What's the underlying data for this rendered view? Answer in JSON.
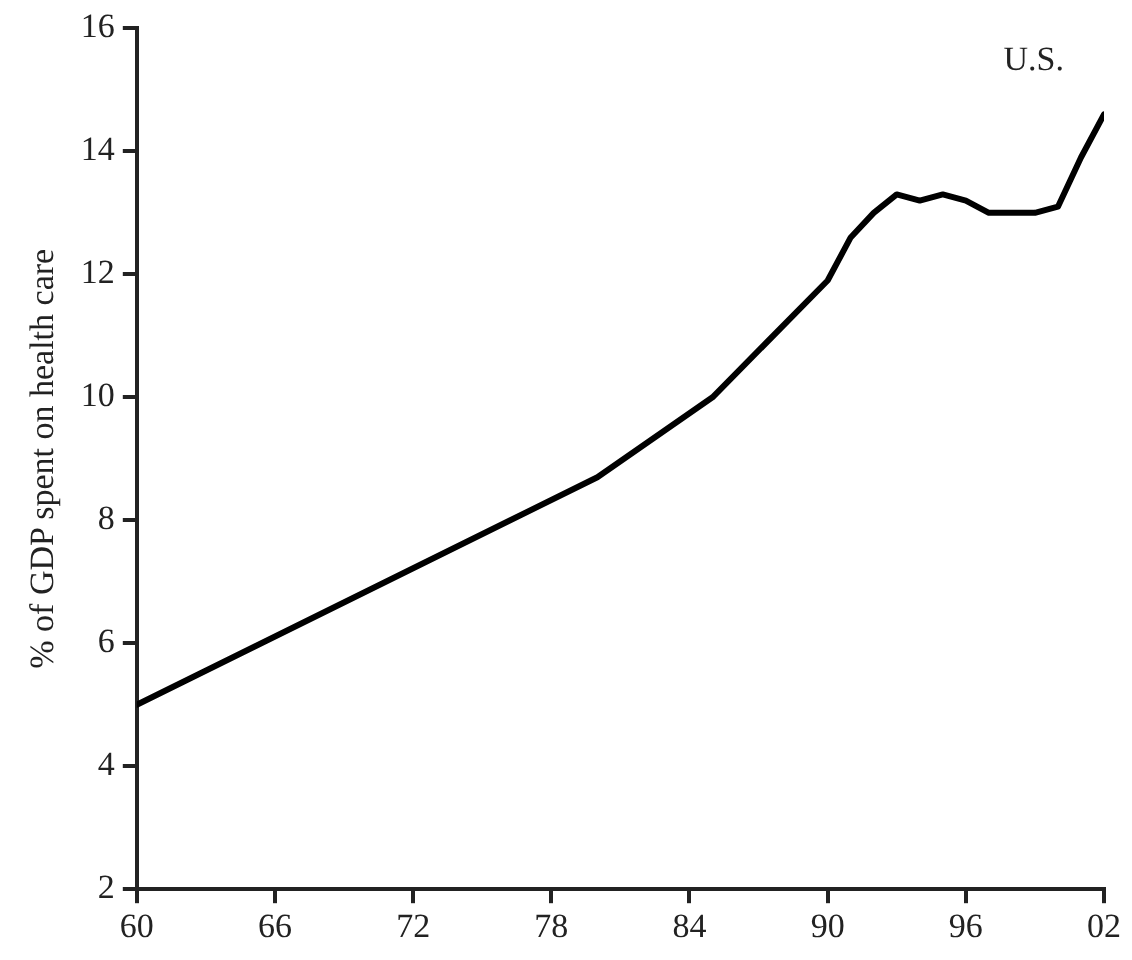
{
  "chart_data": {
    "type": "line",
    "ylabel": "% of GDP spent on health care",
    "annotations": [
      "U.S."
    ],
    "x": [
      1960,
      1980,
      1985,
      1990,
      1991,
      1992,
      1993,
      1994,
      1995,
      1996,
      1997,
      1998,
      1999,
      2000,
      2001,
      2002
    ],
    "series": [
      {
        "color": "#000000",
        "values": [
          5.0,
          8.7,
          10.0,
          11.9,
          12.6,
          13.0,
          13.3,
          13.2,
          13.3,
          13.2,
          13.0,
          13.0,
          13.0,
          13.1,
          13.9,
          14.6
        ]
      }
    ],
    "xlim": [
      1960,
      2002
    ],
    "xticks": [
      {
        "value": 1960,
        "label": "60"
      },
      {
        "value": 1966,
        "label": "66"
      },
      {
        "value": 1972,
        "label": "72"
      },
      {
        "value": 1978,
        "label": "78"
      },
      {
        "value": 1984,
        "label": "84"
      },
      {
        "value": 1990,
        "label": "90"
      },
      {
        "value": 1996,
        "label": "96"
      },
      {
        "value": 2002,
        "label": "02"
      }
    ],
    "ylim": [
      2,
      16
    ],
    "yticks": [
      2,
      4,
      6,
      8,
      10,
      12,
      14,
      16
    ],
    "grid": false,
    "legend": false,
    "marker": "none",
    "line_style": "solid"
  }
}
